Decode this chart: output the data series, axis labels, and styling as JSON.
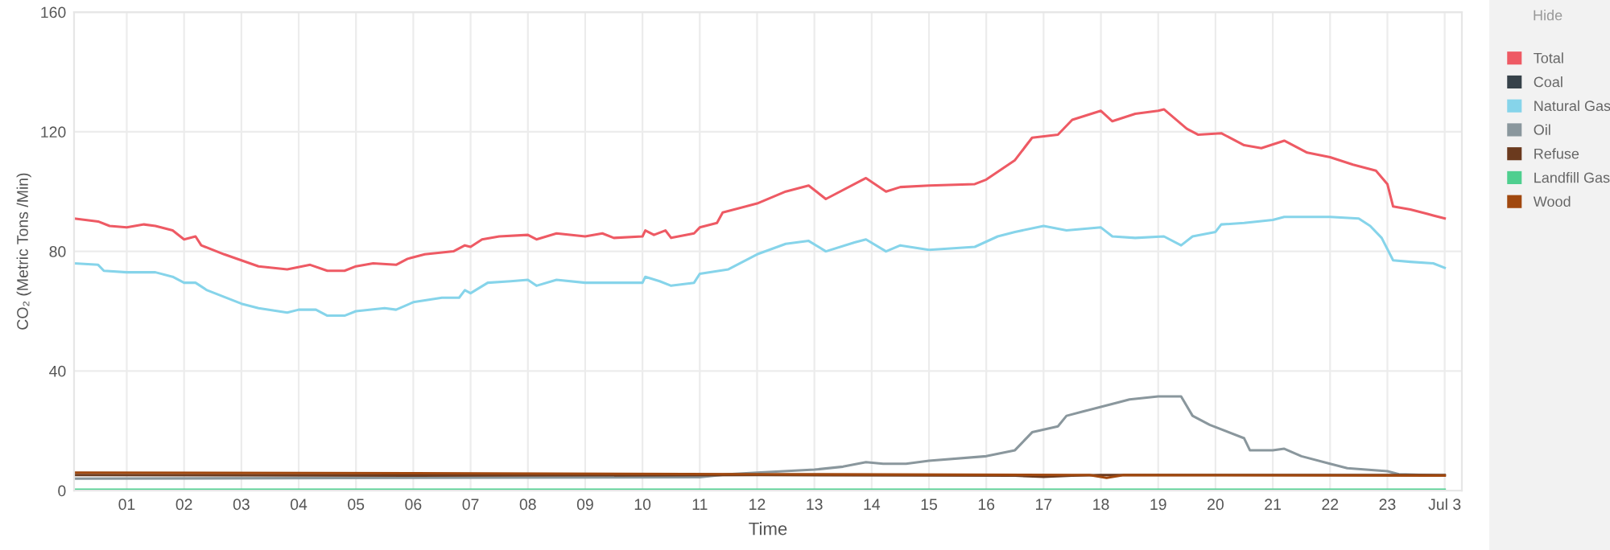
{
  "chart_data": {
    "type": "line",
    "xlabel": "Time",
    "ylabel": "CO₂ (Metric Tons /Min)",
    "annotations": [
      "Hide"
    ],
    "xlim": [
      0.08,
      24.3
    ],
    "ylim": [
      0,
      160
    ],
    "yticks": [
      0,
      40,
      80,
      120,
      160
    ],
    "xticks": [
      {
        "value": 1,
        "label": "01"
      },
      {
        "value": 2,
        "label": "02"
      },
      {
        "value": 3,
        "label": "03"
      },
      {
        "value": 4,
        "label": "04"
      },
      {
        "value": 5,
        "label": "05"
      },
      {
        "value": 6,
        "label": "06"
      },
      {
        "value": 7,
        "label": "07"
      },
      {
        "value": 8,
        "label": "08"
      },
      {
        "value": 9,
        "label": "09"
      },
      {
        "value": 10,
        "label": "10"
      },
      {
        "value": 11,
        "label": "11"
      },
      {
        "value": 12,
        "label": "12"
      },
      {
        "value": 13,
        "label": "13"
      },
      {
        "value": 14,
        "label": "14"
      },
      {
        "value": 15,
        "label": "15"
      },
      {
        "value": 16,
        "label": "16"
      },
      {
        "value": 17,
        "label": "17"
      },
      {
        "value": 18,
        "label": "18"
      },
      {
        "value": 19,
        "label": "19"
      },
      {
        "value": 20,
        "label": "20"
      },
      {
        "value": 21,
        "label": "21"
      },
      {
        "value": 22,
        "label": "22"
      },
      {
        "value": 23,
        "label": "23"
      },
      {
        "value": 24,
        "label": "Jul 3"
      }
    ],
    "grid": true,
    "legend": "right",
    "marker": "none",
    "line_style": "solid",
    "series": [
      {
        "name": "Total",
        "color": "#ee5a64",
        "x": [
          0.08,
          0.5,
          0.7,
          1.0,
          1.3,
          1.5,
          1.8,
          2.0,
          2.2,
          2.3,
          2.7,
          3.0,
          3.3,
          3.8,
          4.2,
          4.5,
          4.8,
          5.0,
          5.3,
          5.7,
          5.9,
          6.2,
          6.7,
          6.9,
          7.0,
          7.2,
          7.5,
          8.0,
          8.15,
          8.5,
          9.0,
          9.3,
          9.5,
          10.0,
          10.05,
          10.2,
          10.4,
          10.5,
          10.9,
          11.0,
          11.3,
          11.4,
          12.0,
          12.5,
          12.9,
          13.2,
          13.9,
          14.25,
          14.5,
          15.0,
          15.8,
          16.0,
          16.5,
          16.8,
          17.25,
          17.5,
          18.0,
          18.2,
          18.6,
          19.0,
          19.1,
          19.5,
          19.7,
          20.1,
          20.5,
          20.8,
          21.2,
          21.6,
          22.0,
          22.4,
          22.8,
          23.0,
          23.1,
          23.4,
          23.7,
          24.0
        ],
        "values": [
          91,
          90,
          88.5,
          88,
          89,
          88.5,
          87,
          84,
          85,
          82,
          79,
          77,
          75,
          74,
          75.5,
          73.5,
          73.5,
          75,
          76,
          75.5,
          77.5,
          79,
          80,
          82,
          81.5,
          84,
          85,
          85.5,
          84,
          86,
          85,
          86,
          84.5,
          85,
          87,
          85.5,
          87,
          84.5,
          86,
          88,
          89.5,
          93,
          96,
          100,
          102,
          97.5,
          104.5,
          100,
          101.5,
          102,
          102.5,
          104,
          110.5,
          118,
          119,
          124,
          127,
          123.5,
          126,
          127,
          127.5,
          121,
          119,
          119.5,
          115.5,
          114.5,
          117,
          113,
          111.5,
          109,
          107,
          102.5,
          95,
          94,
          92.5,
          91
        ]
      },
      {
        "name": "Coal",
        "color": "#37424a"
      },
      {
        "name": "Natural Gas",
        "color": "#86d4ea",
        "x": [
          0.08,
          0.5,
          0.6,
          1.0,
          1.3,
          1.5,
          1.8,
          2.0,
          2.2,
          2.4,
          3.0,
          3.3,
          3.8,
          4.0,
          4.3,
          4.5,
          4.8,
          5.0,
          5.5,
          5.7,
          6.0,
          6.5,
          6.8,
          6.9,
          7.0,
          7.3,
          7.7,
          8.0,
          8.15,
          8.5,
          9.0,
          9.5,
          10.0,
          10.05,
          10.3,
          10.5,
          10.9,
          11.0,
          11.5,
          12.0,
          12.5,
          12.9,
          13.2,
          13.7,
          13.9,
          14.25,
          14.5,
          15.0,
          15.8,
          16.2,
          16.5,
          17.0,
          17.4,
          18.0,
          18.2,
          18.6,
          19.1,
          19.4,
          19.6,
          20.0,
          20.1,
          20.5,
          21.0,
          21.2,
          22.0,
          22.5,
          22.7,
          22.9,
          23.1,
          23.4,
          23.8,
          24.0
        ],
        "values": [
          76,
          75.5,
          73.5,
          73,
          73,
          73,
          71.5,
          69.5,
          69.5,
          67,
          62.5,
          61,
          59.5,
          60.5,
          60.5,
          58.5,
          58.5,
          60,
          61,
          60.5,
          63,
          64.5,
          64.5,
          67,
          66,
          69.5,
          70,
          70.5,
          68.5,
          70.5,
          69.5,
          69.5,
          69.5,
          71.5,
          70,
          68.5,
          69.5,
          72.5,
          74,
          79,
          82.5,
          83.5,
          80,
          83,
          84,
          80,
          82,
          80.5,
          81.5,
          85,
          86.5,
          88.5,
          87,
          88,
          85,
          84.5,
          85,
          82,
          85,
          86.5,
          89,
          89.5,
          90.5,
          91.5,
          91.5,
          91,
          88.5,
          84.5,
          77,
          76.5,
          76,
          74.5
        ]
      },
      {
        "name": "Oil",
        "color": "#8a979d",
        "x": [
          0.08,
          11.0,
          11.5,
          12.0,
          13.0,
          13.5,
          13.9,
          14.2,
          14.6,
          15.0,
          16.0,
          16.5,
          16.8,
          17.25,
          17.4,
          17.7,
          18.0,
          18.3,
          18.5,
          19.0,
          19.4,
          19.6,
          19.9,
          20.5,
          20.6,
          21.0,
          21.2,
          21.5,
          22.0,
          22.3,
          23.0,
          23.2,
          24.0
        ],
        "values": [
          4,
          4.5,
          5.5,
          6,
          7,
          8,
          9.5,
          9,
          9,
          10,
          11.5,
          13.5,
          19.5,
          21.5,
          25,
          26.5,
          28,
          29.5,
          30.5,
          31.5,
          31.5,
          25,
          22,
          17.5,
          13.5,
          13.5,
          14,
          11.5,
          9,
          7.5,
          6.5,
          5.5,
          5
        ]
      },
      {
        "name": "Refuse",
        "color": "#6b3a1e",
        "x": [
          0.08,
          6.0,
          12.0,
          16.5,
          17.0,
          17.5,
          18.0,
          24.0
        ],
        "values": [
          5.2,
          5,
          5.2,
          5,
          4.6,
          5,
          5.2,
          5.2
        ]
      },
      {
        "name": "Landfill Gas",
        "color": "#4fcf8f",
        "x": [
          0.08,
          24.0
        ],
        "values": [
          0.3,
          0.3
        ]
      },
      {
        "name": "Wood",
        "color": "#a0480f",
        "x": [
          0.08,
          6.0,
          12.0,
          17.8,
          18.1,
          18.4,
          24.0
        ],
        "values": [
          6,
          5.8,
          5.5,
          5.2,
          4.3,
          5.2,
          5
        ]
      }
    ]
  }
}
